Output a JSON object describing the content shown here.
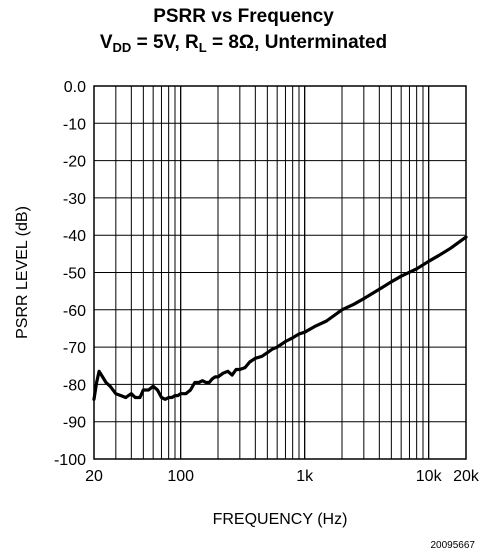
{
  "chart_data": {
    "type": "line",
    "title_line1": "PSRR vs Frequency",
    "title_line2": {
      "vdd_label": "V",
      "vdd_sub": "DD",
      "vdd_value": " = 5V, R",
      "rl_sub": "L",
      "rl_value": " = 8Ω, Unterminated"
    },
    "xlabel": "FREQUENCY (Hz)",
    "ylabel": "PSRR LEVEL (dB)",
    "x_scale": "log",
    "xlim": [
      20,
      20000
    ],
    "ylim": [
      -100,
      0
    ],
    "x_ticks": [
      {
        "value": 20,
        "label": "20"
      },
      {
        "value": 100,
        "label": "100"
      },
      {
        "value": 1000,
        "label": "1k"
      },
      {
        "value": 10000,
        "label": "10k"
      },
      {
        "value": 20000,
        "label": "20k"
      }
    ],
    "y_ticks": [
      {
        "value": 0,
        "label": "0.0"
      },
      {
        "value": -10,
        "label": "-10"
      },
      {
        "value": -20,
        "label": "-20"
      },
      {
        "value": -30,
        "label": "-30"
      },
      {
        "value": -40,
        "label": "-40"
      },
      {
        "value": -50,
        "label": "-50"
      },
      {
        "value": -60,
        "label": "-60"
      },
      {
        "value": -70,
        "label": "-70"
      },
      {
        "value": -80,
        "label": "-80"
      },
      {
        "value": -90,
        "label": "-90"
      },
      {
        "value": -100,
        "label": "-100"
      }
    ],
    "grid": true,
    "series": [
      {
        "color": "#000000",
        "x": [
          20,
          21,
          22,
          23,
          25,
          27,
          30,
          33,
          36,
          40,
          43,
          47,
          50,
          55,
          60,
          65,
          70,
          75,
          80,
          85,
          90,
          95,
          100,
          110,
          120,
          130,
          140,
          150,
          160,
          170,
          180,
          190,
          200,
          220,
          240,
          260,
          280,
          300,
          330,
          360,
          400,
          450,
          500,
          550,
          600,
          700,
          800,
          900,
          1000,
          1200,
          1500,
          2000,
          2500,
          3000,
          4000,
          5000,
          6000,
          8000,
          10000,
          12000,
          15000,
          20000
        ],
        "y": [
          -84,
          -79.5,
          -76.5,
          -77.5,
          -79.5,
          -80.5,
          -82.5,
          -83,
          -83.5,
          -82.5,
          -83.5,
          -83.5,
          -81.5,
          -81.5,
          -80.5,
          -81.5,
          -83.5,
          -84,
          -83.5,
          -83.5,
          -83,
          -83,
          -82.5,
          -82.5,
          -81.5,
          -79.5,
          -79.5,
          -79,
          -79.5,
          -79.5,
          -78.5,
          -78,
          -78,
          -77,
          -76.5,
          -77.5,
          -76,
          -76,
          -75.5,
          -74,
          -73,
          -72.5,
          -71.5,
          -70.5,
          -70,
          -68.5,
          -67.5,
          -66.5,
          -66,
          -64.5,
          -63,
          -60,
          -58.5,
          -57,
          -54.5,
          -52.5,
          -51,
          -49,
          -47,
          -45.5,
          -43.5,
          -40.5
        ]
      }
    ]
  },
  "footer_code": "20095667"
}
